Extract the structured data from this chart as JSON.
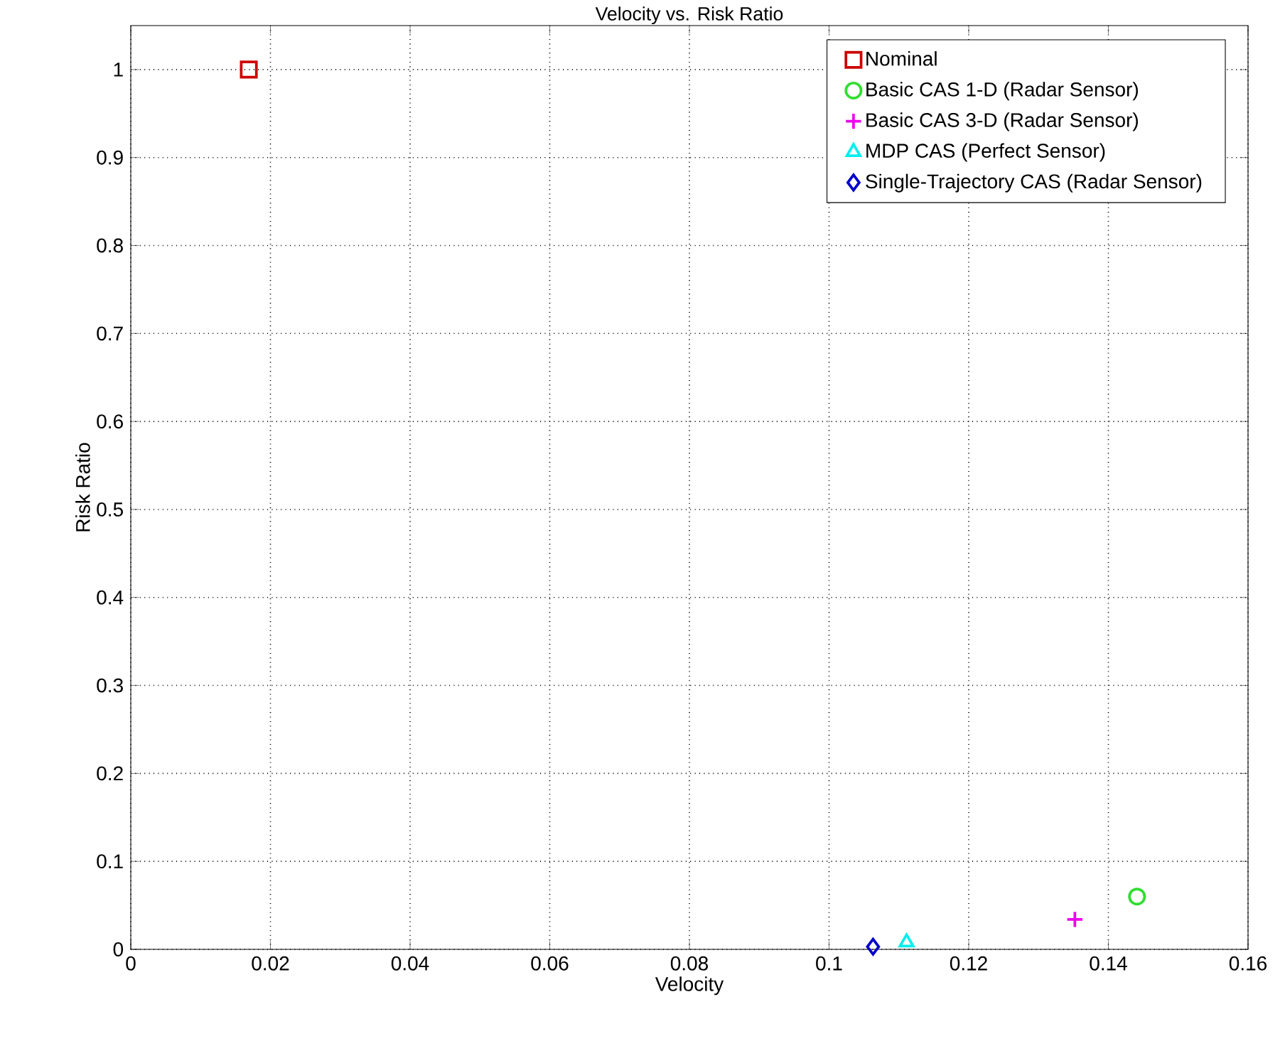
{
  "chart_data": {
    "type": "scatter",
    "title": "Velocity vs. Risk Ratio",
    "xlabel": "Velocity",
    "ylabel": "Risk Ratio",
    "xlim": [
      0,
      0.16
    ],
    "xticks": [
      0,
      0.02,
      0.04,
      0.06,
      0.08,
      0.1,
      0.12,
      0.14,
      0.16
    ],
    "ylim": [
      0,
      1.05
    ],
    "yticks": [
      0,
      0.1,
      0.2,
      0.3,
      0.4,
      0.5,
      0.6,
      0.7,
      0.8,
      0.9,
      1
    ],
    "grid": true,
    "legend": "top right",
    "series": [
      {
        "name": "Nominal",
        "color": "#cc0000",
        "marker": "square",
        "x": [
          0.0169
        ],
        "values": [
          1.0
        ]
      },
      {
        "name": "Basic CAS 1-D (Radar Sensor)",
        "color": "#33dd33",
        "marker": "circle",
        "x": [
          0.1441
        ],
        "values": [
          0.06
        ]
      },
      {
        "name": "Basic CAS 3-D (Radar Sensor)",
        "color": "#ee00ee",
        "marker": "cross",
        "x": [
          0.1352
        ],
        "values": [
          0.034
        ]
      },
      {
        "name": "MDP CAS (Perfect Sensor)",
        "color": "#00eeee",
        "marker": "triangle",
        "x": [
          0.1111
        ],
        "values": [
          0.008
        ]
      },
      {
        "name": "Single-Trajectory CAS (Radar Sensor)",
        "color": "#0000cc",
        "marker": "diamond",
        "x": [
          0.1063
        ],
        "values": [
          0.003
        ]
      }
    ]
  }
}
